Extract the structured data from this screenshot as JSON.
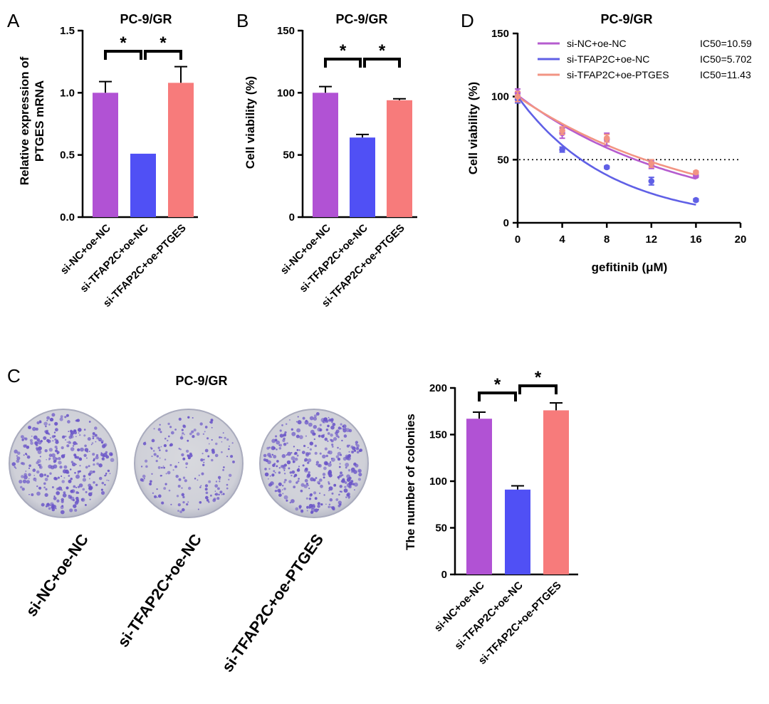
{
  "colors": {
    "purple": "#b152d4",
    "blue": "#5050f5",
    "salmon": "#f77b7b",
    "line_purple": "#b55ccf",
    "line_blue": "#6060e6",
    "line_salmon": "#f29483"
  },
  "panel_letters": {
    "A": "A",
    "B": "B",
    "C": "C",
    "D": "D"
  },
  "chart_data": [
    {
      "id": "A",
      "type": "bar",
      "title": "PC-9/GR",
      "ylabel_lines": [
        "Relative expression of",
        "PTGES mRNA"
      ],
      "categories": [
        "si-NC+oe-NC",
        "si-TFAP2C+oe-NC",
        "si-TFAP2C+oe-PTGES"
      ],
      "values": [
        1.0,
        0.51,
        1.08
      ],
      "errors": [
        0.09,
        0.0,
        0.13
      ],
      "ylim": [
        0,
        1.5
      ],
      "yticks": [
        0,
        0.5,
        1.0,
        1.5
      ],
      "ytick_labels": [
        "0.0",
        "0.5",
        "1.0",
        "1.5"
      ],
      "significance": [
        {
          "pair": [
            0,
            1
          ],
          "label": "*"
        },
        {
          "pair": [
            1,
            2
          ],
          "label": "*"
        }
      ]
    },
    {
      "id": "B",
      "type": "bar",
      "title": "PC-9/GR",
      "ylabel": "Cell viability (%)",
      "categories": [
        "si-NC+oe-NC",
        "si-TFAP2C+oe-NC",
        "si-TFAP2C+oe-PTGES"
      ],
      "values": [
        100,
        64,
        94
      ],
      "errors": [
        5,
        2.5,
        1.2
      ],
      "ylim": [
        0,
        150
      ],
      "yticks": [
        0,
        50,
        100,
        150
      ],
      "ytick_labels": [
        "0",
        "50",
        "100",
        "150"
      ],
      "significance": [
        {
          "pair": [
            0,
            1
          ],
          "label": "*"
        },
        {
          "pair": [
            1,
            2
          ],
          "label": "*"
        }
      ]
    },
    {
      "id": "D",
      "type": "line",
      "title": "PC-9/GR",
      "xlabel": "gefitinib (μM)",
      "ylabel": "Cell viability (%)",
      "xlim": [
        0,
        20
      ],
      "ylim": [
        0,
        150
      ],
      "xticks": [
        0,
        4,
        8,
        12,
        16,
        20
      ],
      "yticks": [
        0,
        50,
        100,
        150
      ],
      "reference_line": 50,
      "x": [
        0,
        4,
        8,
        12,
        16
      ],
      "series": [
        {
          "name": "si-NC+oe-NC",
          "ic50_label": "IC50=10.59",
          "ic50": 10.59,
          "values": [
            103,
            71,
            66,
            46,
            37
          ],
          "errors": [
            3,
            4,
            5,
            3,
            1
          ]
        },
        {
          "name": "si-TFAP2C+oe-NC",
          "ic50_label": "IC50=5.702",
          "ic50": 5.702,
          "values": [
            98,
            58,
            44,
            33,
            18
          ],
          "errors": [
            3,
            2,
            1,
            3,
            1
          ]
        },
        {
          "name": "si-TFAP2C+oe-PTGES",
          "ic50_label": "IC50=11.43",
          "ic50": 11.43,
          "values": [
            100,
            73,
            67,
            47,
            40
          ],
          "errors": [
            4,
            3,
            3,
            3,
            1
          ]
        }
      ]
    },
    {
      "id": "C-bar",
      "type": "bar",
      "title": "",
      "ylabel": "The number of colonies",
      "categories": [
        "si-NC+oe-NC",
        "si-TFAP2C+oe-NC",
        "si-TFAP2C+oe-PTGES"
      ],
      "values": [
        167,
        91,
        176
      ],
      "errors": [
        7,
        4,
        8
      ],
      "ylim": [
        0,
        200
      ],
      "yticks": [
        0,
        50,
        100,
        150,
        200
      ],
      "ytick_labels": [
        "0",
        "50",
        "100",
        "150",
        "200"
      ],
      "significance": [
        {
          "pair": [
            0,
            1
          ],
          "label": "*"
        },
        {
          "pair": [
            1,
            2
          ],
          "label": "*"
        }
      ]
    }
  ],
  "panel_c": {
    "title": "PC-9/GR",
    "dishes": [
      {
        "label": "si-NC+oe-NC",
        "colony_count": 167
      },
      {
        "label": "si-TFAP2C+oe-NC",
        "colony_count": 91
      },
      {
        "label": "si-TFAP2C+oe-PTGES",
        "colony_count": 176
      }
    ]
  }
}
